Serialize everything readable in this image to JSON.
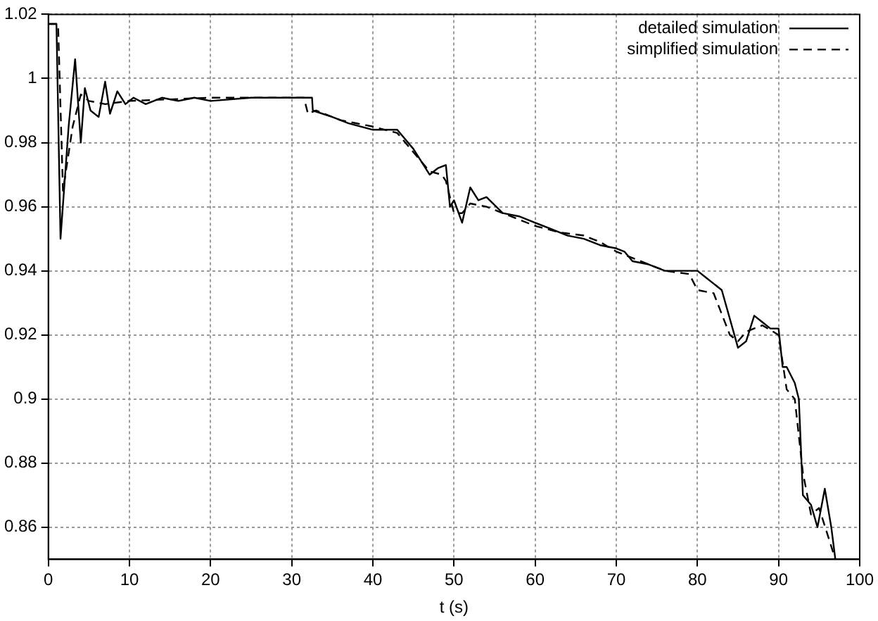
{
  "chart_data": {
    "type": "line",
    "xlabel": "t (s)",
    "xlim": [
      0,
      100
    ],
    "ylim": [
      0.85,
      1.02
    ],
    "xticks": [
      0,
      10,
      20,
      30,
      40,
      50,
      60,
      70,
      80,
      90,
      100
    ],
    "yticks": [
      0.86,
      0.88,
      0.9,
      0.92,
      0.94,
      0.96,
      0.98,
      1,
      1.02
    ],
    "grid": true,
    "legend": "top right",
    "marker": "none",
    "series": [
      {
        "name": "detailed simulation",
        "color": "#000000",
        "line_style": "solid",
        "x": [
          0,
          1,
          1.5,
          2.5,
          3.3,
          4,
          4.5,
          5.2,
          6.2,
          7,
          7.6,
          8.5,
          9.5,
          10.5,
          12,
          14,
          16,
          18,
          20,
          25,
          30,
          32.5,
          32.6,
          35,
          37,
          40,
          43,
          45,
          46,
          47,
          48,
          49,
          49.5,
          50,
          51,
          52,
          53,
          54,
          56,
          58,
          60,
          62,
          64,
          66,
          68,
          70,
          71,
          72,
          74,
          76,
          78,
          80,
          81,
          82,
          83,
          84,
          85,
          86,
          87,
          88,
          89,
          90,
          90.5,
          91,
          92,
          92.5,
          93,
          94,
          94.8,
          95.7,
          96.5,
          97
        ],
        "values": [
          1.017,
          1.017,
          0.95,
          0.985,
          1.006,
          0.98,
          0.997,
          0.99,
          0.988,
          0.999,
          0.989,
          0.996,
          0.992,
          0.994,
          0.992,
          0.994,
          0.993,
          0.994,
          0.993,
          0.994,
          0.994,
          0.994,
          0.99,
          0.988,
          0.986,
          0.984,
          0.984,
          0.978,
          0.974,
          0.97,
          0.972,
          0.973,
          0.96,
          0.962,
          0.955,
          0.966,
          0.962,
          0.963,
          0.958,
          0.957,
          0.955,
          0.953,
          0.951,
          0.95,
          0.948,
          0.947,
          0.946,
          0.943,
          0.942,
          0.94,
          0.94,
          0.94,
          0.938,
          0.936,
          0.934,
          0.925,
          0.916,
          0.918,
          0.926,
          0.924,
          0.922,
          0.922,
          0.91,
          0.91,
          0.905,
          0.9,
          0.87,
          0.867,
          0.86,
          0.872,
          0.86,
          0.85
        ]
      },
      {
        "name": "simplified simulation",
        "color": "#000000",
        "line_style": "dashed",
        "x": [
          0,
          1.2,
          1.8,
          3,
          4,
          5,
          7,
          10,
          20,
          30,
          31.5,
          32,
          33,
          36,
          40,
          43,
          45,
          47,
          48.5,
          49,
          50,
          51,
          52,
          54,
          57,
          60,
          63,
          66,
          68,
          70,
          72,
          74,
          76,
          79,
          80,
          82,
          84,
          85,
          86,
          88,
          90,
          91,
          92,
          93,
          94,
          95,
          96,
          97
        ],
        "values": [
          1.017,
          1.017,
          0.965,
          0.985,
          0.995,
          0.993,
          0.992,
          0.993,
          0.994,
          0.994,
          0.994,
          0.989,
          0.99,
          0.987,
          0.985,
          0.983,
          0.977,
          0.971,
          0.97,
          0.968,
          0.958,
          0.958,
          0.961,
          0.96,
          0.957,
          0.954,
          0.952,
          0.951,
          0.949,
          0.946,
          0.944,
          0.942,
          0.94,
          0.939,
          0.934,
          0.933,
          0.92,
          0.918,
          0.921,
          0.923,
          0.92,
          0.903,
          0.9,
          0.877,
          0.864,
          0.866,
          0.858,
          0.85
        ]
      }
    ]
  }
}
